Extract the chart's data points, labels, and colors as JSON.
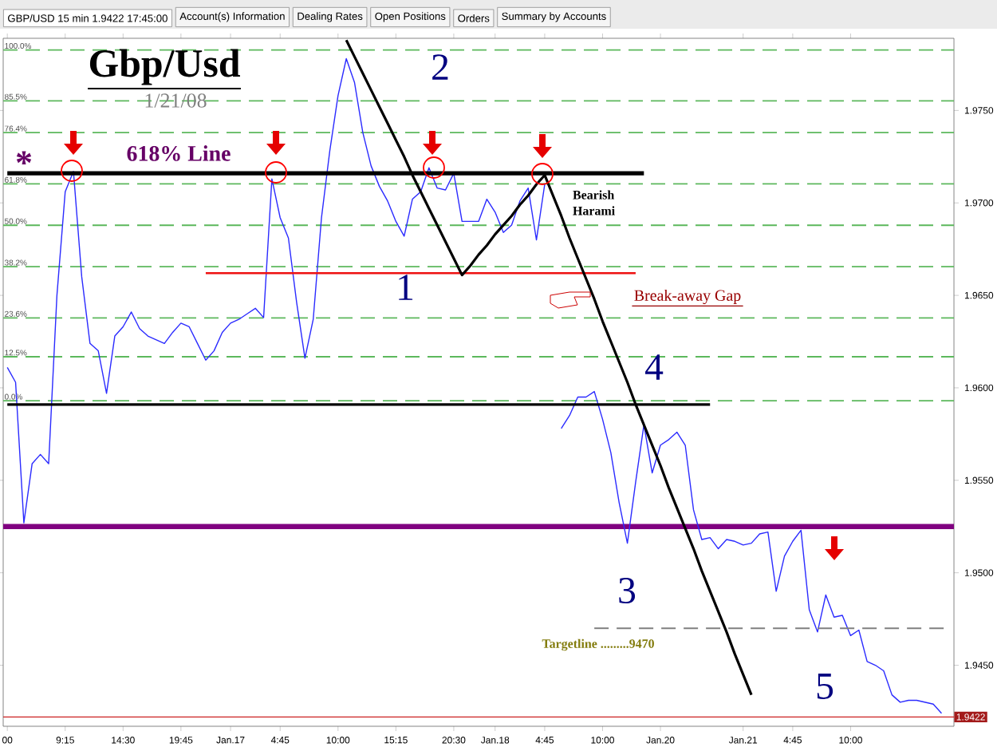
{
  "chart_data": {
    "type": "line",
    "title": "Gbp/Usd",
    "subtitle": "1/21/08",
    "categories": [
      "00",
      null,
      null,
      null,
      null,
      null,
      null,
      "9:15",
      null,
      null,
      null,
      null,
      null,
      null,
      "14:30",
      null,
      null,
      null,
      null,
      null,
      null,
      "19:45",
      null,
      null,
      null,
      null,
      null,
      "Jan.17",
      null,
      null,
      null,
      null,
      null,
      "4:45",
      null,
      null,
      null,
      null,
      null,
      null,
      "10:00",
      null,
      null,
      null,
      null,
      null,
      null,
      "15:15",
      null,
      null,
      null,
      null,
      null,
      null,
      "20:30",
      null,
      null,
      null,
      null,
      "Jan.18",
      null,
      null,
      null,
      null,
      null,
      "4:45",
      null,
      null,
      null,
      null,
      null,
      null,
      "10:00",
      null,
      null,
      null,
      null,
      null,
      null,
      "Jan.20",
      null,
      null,
      null,
      null,
      null,
      null,
      null,
      null,
      null,
      "Jan.21",
      null,
      null,
      null,
      null,
      null,
      "4:45",
      null,
      null,
      null,
      null,
      null,
      null,
      "10:00",
      null,
      null,
      null,
      null,
      null,
      null,
      null,
      null,
      null,
      null,
      null,
      null
    ],
    "ylim": [
      1.9417,
      1.9789
    ],
    "yticks": [
      {
        "value": 1.945,
        "label": "1.9450"
      },
      {
        "value": 1.95,
        "label": "1.9500"
      },
      {
        "value": 1.955,
        "label": "1.9550"
      },
      {
        "value": 1.96,
        "label": "1.9600"
      },
      {
        "value": 1.965,
        "label": "1.9650"
      },
      {
        "value": 1.97,
        "label": "1.9700"
      },
      {
        "value": 1.975,
        "label": "1.9750"
      }
    ],
    "y2lim": [
      -92.8,
      103.3
    ],
    "y2ticks": [
      {
        "value": 0,
        "label": "0.0%"
      },
      {
        "value": 12.5,
        "label": "12.5%"
      },
      {
        "value": 23.6,
        "label": "23.6%"
      },
      {
        "value": 38.2,
        "label": "38.2%"
      },
      {
        "value": 50,
        "label": "50.0%"
      },
      {
        "value": 61.8,
        "label": "61.8%"
      },
      {
        "value": 76.4,
        "label": "76.4%"
      },
      {
        "value": 85.5,
        "label": "85.5%"
      },
      {
        "value": 100,
        "label": "100.0%"
      }
    ],
    "series": [
      {
        "color": "#2b2bff",
        "values": [
          1.9611,
          1.9603,
          1.9527,
          1.9559,
          1.9564,
          1.9559,
          1.965,
          1.9706,
          1.9717,
          1.966,
          1.9624,
          1.962,
          1.9597,
          1.9628,
          1.9633,
          1.9641,
          1.9632,
          1.9628,
          1.9626,
          1.9624,
          1.963,
          1.9635,
          1.9633,
          1.9624,
          1.9615,
          1.962,
          1.963,
          1.9635,
          1.9637,
          1.964,
          1.9643,
          1.9638,
          1.9713,
          1.9692,
          1.9681,
          1.9646,
          1.9616,
          1.9637,
          1.9692,
          1.9728,
          1.9758,
          1.9778,
          1.9765,
          1.9738,
          1.972,
          1.9709,
          1.9701,
          1.969,
          1.9682,
          1.9702,
          1.9706,
          1.9719,
          1.9708,
          1.9707,
          1.9716,
          1.969,
          1.969,
          1.969,
          1.9702,
          1.9695,
          1.9684,
          1.9688,
          1.9701,
          1.9708,
          1.968,
          1.971,
          null,
          1.9578,
          1.9585,
          1.9595,
          1.9595,
          1.9598,
          1.9583,
          1.9565,
          1.9538,
          1.9516,
          1.9549,
          1.958,
          1.9554,
          1.9569,
          1.9572,
          1.9576,
          1.9569,
          1.9534,
          1.9518,
          1.9519,
          1.9513,
          1.9518,
          1.9517,
          1.9515,
          1.9516,
          1.9521,
          1.9522,
          1.949,
          1.9509,
          1.9517,
          1.9523,
          1.948,
          1.9468,
          1.9488,
          1.9476,
          1.9477,
          1.9466,
          1.9469,
          1.9452,
          1.945,
          1.9447,
          1.9434,
          1.943,
          1.9431,
          1.9431,
          1.943,
          1.9429,
          1.9424,
          null
        ]
      },
      {
        "color": "#000000",
        "values": [
          1.9716,
          1.9716,
          1.9716,
          1.9716,
          1.9716,
          1.9716,
          1.9716,
          1.9716,
          1.9716,
          1.9716,
          1.9716,
          1.9716,
          1.9716,
          1.9716,
          1.9716,
          1.9716,
          1.9716,
          1.9716,
          1.9716,
          1.9716,
          1.9716,
          1.9716,
          1.9716,
          1.9716,
          1.9716,
          1.9716,
          1.9716,
          1.9716,
          1.9716,
          1.9716,
          1.9716,
          1.9716,
          1.9716,
          1.9716,
          1.9716,
          1.9716,
          1.9716,
          1.9716,
          1.9716,
          1.9716,
          1.9716,
          1.9716,
          1.9716,
          1.9716,
          1.9716,
          1.9716,
          1.9716,
          1.9716,
          1.9716,
          1.9716,
          1.9716,
          1.9716,
          1.9716,
          1.9716,
          1.9716,
          1.9716,
          1.9716,
          1.9716,
          1.9716,
          1.9716,
          1.9716,
          1.9716,
          1.9716,
          1.9716,
          1.9716,
          1.9716,
          1.9716,
          1.9716,
          1.9716,
          1.9716,
          1.9716,
          1.9716,
          1.9716,
          1.9716,
          1.9716,
          1.9716,
          1.9716,
          1.9716,
          null,
          null,
          null,
          null,
          null,
          null,
          null,
          null,
          null,
          null,
          null,
          null,
          null,
          null,
          null,
          null,
          null,
          null,
          null,
          null,
          null,
          null,
          null,
          null,
          null,
          null,
          null,
          null,
          null,
          null,
          null,
          null,
          null,
          null,
          null,
          null,
          null
        ]
      },
      {
        "color": "#ee1111",
        "values": [
          null,
          null,
          null,
          null,
          null,
          null,
          null,
          null,
          null,
          null,
          null,
          null,
          null,
          null,
          null,
          null,
          null,
          null,
          null,
          null,
          null,
          null,
          null,
          null,
          1.9662,
          1.9662,
          1.9662,
          1.9662,
          1.9662,
          1.9662,
          1.9662,
          1.9662,
          1.9662,
          1.9662,
          1.9662,
          1.9662,
          1.9662,
          1.9662,
          1.9662,
          1.9662,
          1.9662,
          1.9662,
          1.9662,
          1.9662,
          1.9662,
          1.9662,
          1.9662,
          1.9662,
          1.9662,
          1.9662,
          1.9662,
          1.9662,
          1.9662,
          1.9662,
          1.9662,
          1.9662,
          1.9662,
          1.9662,
          1.9662,
          1.9662,
          1.9662,
          1.9662,
          1.9662,
          1.9662,
          1.9662,
          1.9662,
          1.9662,
          1.9662,
          1.9662,
          1.9662,
          1.9662,
          1.9662,
          1.9662,
          1.9662,
          1.9662,
          1.9662,
          1.9662,
          null,
          null,
          null,
          null,
          null,
          null,
          null,
          null,
          null,
          null,
          null,
          null,
          null,
          null,
          null,
          null,
          null,
          null,
          null,
          null,
          null,
          null,
          null,
          null,
          null,
          null,
          null,
          null,
          null,
          null,
          null,
          null,
          null,
          null,
          null,
          null,
          null,
          null
        ]
      },
      {
        "color": "#000000",
        "values": [
          1.9591,
          1.9591,
          1.9591,
          1.9591,
          1.9591,
          1.9591,
          1.9591,
          1.9591,
          1.9591,
          1.9591,
          1.9591,
          1.9591,
          1.9591,
          1.9591,
          1.9591,
          1.9591,
          1.9591,
          1.9591,
          1.9591,
          1.9591,
          1.9591,
          1.9591,
          1.9591,
          1.9591,
          1.9591,
          1.9591,
          1.9591,
          1.9591,
          1.9591,
          1.9591,
          1.9591,
          1.9591,
          1.9591,
          1.9591,
          1.9591,
          1.9591,
          1.9591,
          1.9591,
          1.9591,
          1.9591,
          1.9591,
          1.9591,
          1.9591,
          1.9591,
          1.9591,
          1.9591,
          1.9591,
          1.9591,
          1.9591,
          1.9591,
          1.9591,
          1.9591,
          1.9591,
          1.9591,
          1.9591,
          1.9591,
          1.9591,
          1.9591,
          1.9591,
          1.9591,
          1.9591,
          1.9591,
          1.9591,
          1.9591,
          1.9591,
          1.9591,
          1.9591,
          1.9591,
          1.9591,
          1.9591,
          1.9591,
          1.9591,
          1.9591,
          1.9591,
          1.9591,
          1.9591,
          1.9591,
          1.9591,
          1.9591,
          1.9591,
          1.9591,
          1.9591,
          1.9591,
          1.9591,
          1.9591,
          1.9591,
          null,
          null,
          null,
          null,
          null,
          null,
          null,
          null,
          null,
          null,
          null,
          null,
          null,
          null,
          null,
          null,
          null,
          null,
          null,
          null,
          null,
          null,
          null,
          null,
          null,
          null,
          null,
          null,
          null
        ]
      },
      {
        "color": "#000000",
        "values": [
          null,
          null,
          null,
          null,
          null,
          null,
          null,
          null,
          null,
          null,
          null,
          null,
          null,
          null,
          null,
          null,
          null,
          null,
          null,
          null,
          null,
          null,
          null,
          null,
          null,
          null,
          null,
          null,
          null,
          null,
          null,
          null,
          null,
          null,
          null,
          null,
          null,
          null,
          null,
          null,
          null,
          1.9788,
          1.9779,
          1.977,
          1.9761,
          1.9752,
          1.9743,
          1.9734,
          1.9725,
          1.9715,
          1.9706,
          1.9697,
          1.9688,
          1.9679,
          1.967,
          1.9661,
          1.9666,
          1.9672,
          1.9677,
          1.9683,
          1.9688,
          1.9693,
          1.9699,
          1.9704,
          1.971,
          1.9715,
          1.9704,
          1.9693,
          1.9681,
          1.967,
          1.9659,
          1.9648,
          1.9636,
          1.9625,
          1.9614,
          1.9603,
          1.9591,
          1.958,
          1.9569,
          1.9558,
          1.9546,
          1.9535,
          1.9524,
          1.9513,
          1.9501,
          1.949,
          1.9479,
          1.9468,
          1.9456,
          1.9445,
          1.9434,
          null,
          null,
          null,
          null,
          null,
          null,
          null,
          null,
          null,
          null,
          null,
          null,
          null,
          null,
          null,
          null,
          null,
          null,
          null,
          null,
          null,
          null,
          null,
          null
        ]
      },
      {
        "color": "#808080",
        "line_style": "dashed",
        "values": [
          null,
          null,
          null,
          null,
          null,
          null,
          null,
          null,
          null,
          null,
          null,
          null,
          null,
          null,
          null,
          null,
          null,
          null,
          null,
          null,
          null,
          null,
          null,
          null,
          null,
          null,
          null,
          null,
          null,
          null,
          null,
          null,
          null,
          null,
          null,
          null,
          null,
          null,
          null,
          null,
          null,
          null,
          null,
          null,
          null,
          null,
          null,
          null,
          null,
          null,
          null,
          null,
          null,
          null,
          null,
          null,
          null,
          null,
          null,
          null,
          null,
          null,
          null,
          null,
          null,
          null,
          null,
          null,
          null,
          null,
          null,
          1.947,
          1.947,
          1.947,
          1.947,
          1.947,
          1.947,
          1.947,
          1.947,
          1.947,
          1.947,
          1.947,
          1.947,
          1.947,
          1.947,
          1.947,
          1.947,
          1.947,
          1.947,
          1.947,
          1.947,
          1.947,
          1.947,
          1.947,
          1.947,
          1.947,
          1.947,
          1.947,
          1.947,
          1.947,
          1.947,
          1.947,
          1.947,
          1.947,
          1.947,
          1.947,
          1.947,
          1.947,
          1.947,
          1.947,
          1.947,
          1.947,
          1.947,
          1.947,
          1.947
        ]
      }
    ],
    "ref_lines": [
      {
        "axis": "y2",
        "value": 100,
        "color": "#5cb85c",
        "line_style": "dashed"
      },
      {
        "axis": "y2",
        "value": 85.5,
        "color": "#5cb85c",
        "line_style": "dashed"
      },
      {
        "axis": "y2",
        "value": 76.4,
        "color": "#5cb85c",
        "line_style": "dashed"
      },
      {
        "axis": "y2",
        "value": 61.8,
        "color": "#5cb85c",
        "line_style": "dashed"
      },
      {
        "axis": "y2",
        "value": 50,
        "color": "#5cb85c",
        "line_style": "dashed"
      },
      {
        "axis": "y2",
        "value": 38.2,
        "color": "#5cb85c",
        "line_style": "dashed"
      },
      {
        "axis": "y2",
        "value": 23.6,
        "color": "#5cb85c",
        "line_style": "dashed"
      },
      {
        "axis": "y2",
        "value": 12.5,
        "color": "#5cb85c",
        "line_style": "dashed"
      },
      {
        "axis": "y2",
        "value": 0,
        "color": "#5cb85c",
        "line_style": "dashed"
      },
      {
        "axis": "y",
        "value": 1.9525,
        "color": "#800080",
        "line_style": "solid"
      },
      {
        "axis": "y",
        "value": 1.9422,
        "label": "1.9422",
        "color": "#cc2222",
        "line_style": "solid"
      }
    ],
    "annotations": [
      "GBP/USD 15 min 1.9422 17:45:00",
      "Account(s) Information",
      "Dealing Rates",
      "Open Positions",
      "Orders",
      "Summary by Accounts",
      "*",
      "618% Line",
      "1",
      "2",
      "3",
      "4",
      "5",
      "Bearish Harami",
      "Break-away  Gap",
      "Targetline .........9470"
    ]
  }
}
